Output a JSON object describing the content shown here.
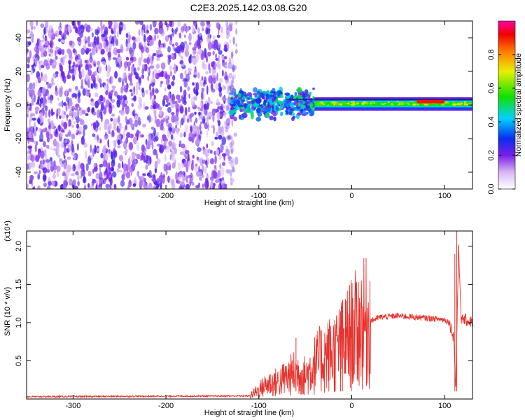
{
  "title": "C2E3.2025.142.03.08.G20",
  "chart_data": [
    {
      "type": "heatmap",
      "xlabel": "Height of straight line (km)",
      "ylabel": "Frequency (Hz)",
      "xlim": [
        -350,
        130
      ],
      "ylim": [
        -50,
        50
      ],
      "xticks": [
        -300,
        -200,
        -100,
        0,
        100
      ],
      "yticks": [
        -40,
        -20,
        0,
        20,
        40
      ],
      "colorbar": {
        "label": "Normalized spectral amplitude",
        "range": [
          0,
          1
        ],
        "ticks": [
          "0.0",
          "0.2",
          "0.4",
          "0.6",
          "0.8"
        ]
      },
      "regions": [
        {
          "x": [
            -350,
            -130
          ],
          "y": [
            -50,
            50
          ],
          "level": 0.2
        },
        {
          "x": [
            -130,
            -40
          ],
          "y": [
            -10,
            10
          ],
          "level": 0.45
        },
        {
          "x": [
            -40,
            130
          ],
          "y": [
            -3,
            3
          ],
          "level": 0.5
        },
        {
          "x": [
            70,
            100
          ],
          "y": [
            1,
            3
          ],
          "level": 0.9
        }
      ]
    },
    {
      "type": "line",
      "xlabel": "Height of straight line (km)",
      "ylabel": "SNR (10 * v/v)",
      "y_scale_label": "(x10⁴)",
      "xlim": [
        -350,
        130
      ],
      "ylim": [
        0,
        2.2
      ],
      "xticks": [
        -300,
        -200,
        -100,
        0,
        100
      ],
      "yticks": [
        "0.5",
        "1.0",
        "1.5",
        "2.0"
      ],
      "x": [
        -350,
        -110,
        -100,
        -90,
        -80,
        -70,
        -60,
        -50,
        -40,
        -30,
        -20,
        -10,
        0,
        10,
        20,
        30,
        40,
        50,
        60,
        70,
        80,
        90,
        100,
        105,
        110,
        112,
        115,
        118,
        120,
        125,
        130
      ],
      "y": [
        0.03,
        0.04,
        0.12,
        0.2,
        0.22,
        0.28,
        0.35,
        0.3,
        0.45,
        0.55,
        0.6,
        0.7,
        0.85,
        0.95,
        1.02,
        1.07,
        1.08,
        1.09,
        1.08,
        1.07,
        1.06,
        1.05,
        1.04,
        1.0,
        0.8,
        0.1,
        2.0,
        1.0,
        1.05,
        1.02,
        1.01
      ],
      "color": "#e8322d"
    }
  ]
}
